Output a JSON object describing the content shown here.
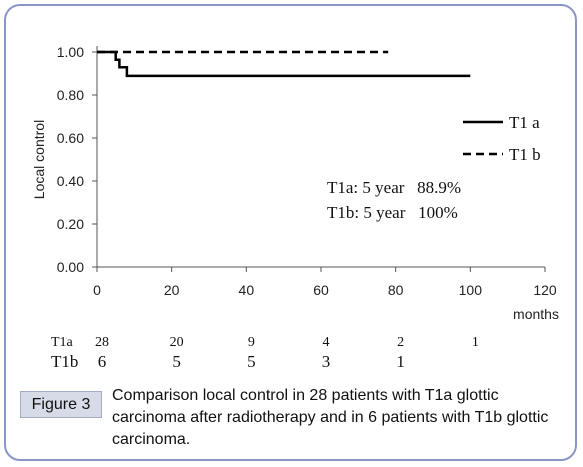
{
  "chart_data": {
    "type": "line",
    "title": "",
    "xlabel": "months",
    "ylabel": "Local control",
    "xlim": [
      0,
      120
    ],
    "ylim": [
      0,
      1.0
    ],
    "x_ticks": [
      "0",
      "20",
      "40",
      "60",
      "80",
      "100",
      "120"
    ],
    "y_ticks": [
      "0.00",
      "0.20",
      "0.40",
      "0.60",
      "0.80",
      "1.00"
    ],
    "x_tick_values": [
      0,
      20,
      40,
      60,
      80,
      100,
      120
    ],
    "y_tick_values": [
      0,
      0.2,
      0.4,
      0.6,
      0.8,
      1.0
    ],
    "grid": false,
    "legend_position": "right",
    "series": [
      {
        "name": "T1 a",
        "style": "solid",
        "x": [
          0,
          5,
          5,
          6,
          6,
          7,
          7,
          8,
          8,
          100
        ],
        "y": [
          1.0,
          1.0,
          0.964,
          0.964,
          0.929,
          0.929,
          0.929,
          0.929,
          0.889,
          0.889
        ]
      },
      {
        "name": "T1 b",
        "style": "dashed",
        "x": [
          0,
          78
        ],
        "y": [
          1.0,
          1.0
        ]
      }
    ],
    "annotations": [
      "T1a: 5 year   88.9%",
      "T1b: 5 year   100%"
    ],
    "risk_table": {
      "rows": [
        {
          "label": "T1a",
          "values": [
            "28",
            "20",
            "9",
            "4",
            "2",
            "1"
          ]
        },
        {
          "label": "T1b",
          "values": [
            "6",
            "5",
            "5",
            "3",
            "1"
          ]
        }
      ]
    }
  },
  "caption": {
    "label": "Figure 3",
    "text": "Comparison local control in 28 patients with T1a glottic carcinoma after radiotherapy and in 6 patients with T1b glottic carcinoma."
  },
  "colors": {
    "frame": "#8a96c8",
    "line": "#000000",
    "caption_label_bg": "#d7dbe8"
  }
}
